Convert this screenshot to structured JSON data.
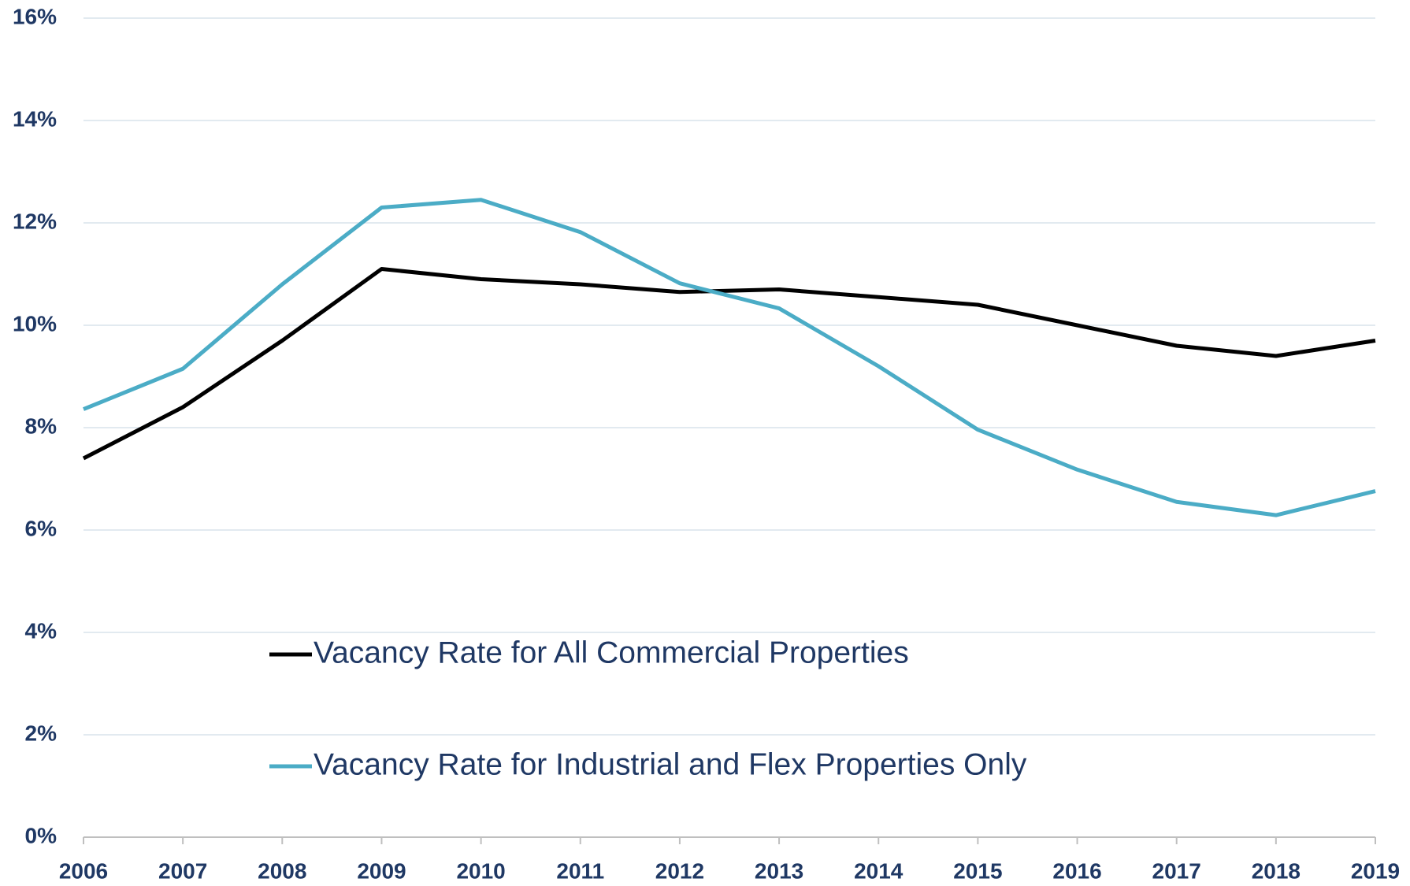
{
  "chart_data": {
    "type": "line",
    "x": [
      2006,
      2007,
      2008,
      2009,
      2010,
      2011,
      2012,
      2013,
      2014,
      2015,
      2016,
      2017,
      2018,
      2019
    ],
    "xlim": [
      2006,
      2019
    ],
    "xticks": [
      2006,
      2007,
      2008,
      2009,
      2010,
      2011,
      2012,
      2013,
      2014,
      2015,
      2016,
      2017,
      2018,
      2019
    ],
    "ylim": [
      0,
      16
    ],
    "yticks": [
      {
        "value": 0,
        "label": "0%"
      },
      {
        "value": 2,
        "label": "2%"
      },
      {
        "value": 4,
        "label": "4%"
      },
      {
        "value": 6,
        "label": "6%"
      },
      {
        "value": 8,
        "label": "8%"
      },
      {
        "value": 10,
        "label": "10%"
      },
      {
        "value": 12,
        "label": "12%"
      },
      {
        "value": 14,
        "label": "14%"
      },
      {
        "value": 16,
        "label": "16%"
      }
    ],
    "grid": true,
    "legend": "bottom-left",
    "series": [
      {
        "name": "Vacancy Rate for All Commercial Properties",
        "color": "#000000",
        "values": [
          7.4,
          8.4,
          9.7,
          11.1,
          10.9,
          10.8,
          10.65,
          10.7,
          10.55,
          10.4,
          10.0,
          9.6,
          9.4,
          9.7
        ]
      },
      {
        "name": "Vacancy Rate for Industrial and Flex Properties Only",
        "color": "#4bacc6",
        "values": [
          8.36,
          9.15,
          10.8,
          12.3,
          12.45,
          11.82,
          10.82,
          10.33,
          9.2,
          7.96,
          7.18,
          6.55,
          6.29,
          6.76
        ]
      }
    ]
  }
}
